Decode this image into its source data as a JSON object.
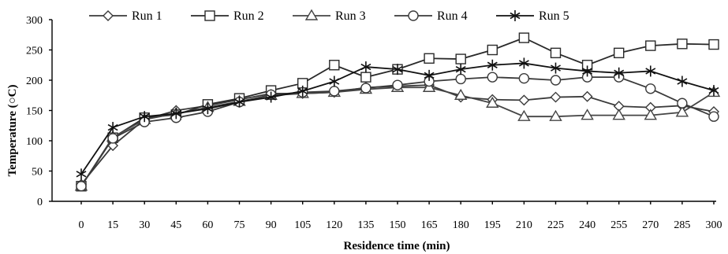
{
  "chart_data": {
    "type": "line",
    "title": "",
    "xlabel": "Residence time (min)",
    "ylabel": "Temperature  (○C)",
    "x": [
      0,
      15,
      30,
      45,
      60,
      75,
      90,
      105,
      120,
      135,
      150,
      165,
      180,
      195,
      210,
      225,
      240,
      255,
      270,
      285,
      300
    ],
    "ylim": [
      0,
      300
    ],
    "yticks": [
      0,
      50,
      100,
      150,
      200,
      250,
      300
    ],
    "grid": false,
    "legend_position": "top",
    "series": [
      {
        "name": "Run 1",
        "marker": "diamond",
        "color": "#3a3a3a",
        "values": [
          28,
          92,
          135,
          150,
          158,
          168,
          178,
          178,
          180,
          188,
          190,
          192,
          172,
          168,
          167,
          172,
          173,
          157,
          155,
          158,
          148
        ]
      },
      {
        "name": "Run 2",
        "marker": "square",
        "color": "#2a2a2a",
        "values": [
          25,
          105,
          138,
          143,
          160,
          170,
          183,
          195,
          225,
          205,
          218,
          236,
          235,
          250,
          270,
          245,
          225,
          245,
          257,
          260,
          259
        ]
      },
      {
        "name": "Run 3",
        "marker": "triangle",
        "color": "#444444",
        "values": [
          25,
          106,
          135,
          145,
          155,
          165,
          175,
          178,
          180,
          185,
          188,
          188,
          175,
          162,
          140,
          140,
          142,
          142,
          142,
          147,
          180
        ]
      },
      {
        "name": "Run 4",
        "marker": "circle",
        "color": "#3a3a3a",
        "values": [
          25,
          104,
          131,
          138,
          148,
          164,
          176,
          180,
          182,
          187,
          192,
          198,
          202,
          205,
          203,
          200,
          205,
          205,
          186,
          162,
          140
        ]
      },
      {
        "name": "Run 5",
        "marker": "star",
        "color": "#111111",
        "values": [
          45,
          122,
          140,
          145,
          153,
          164,
          172,
          182,
          198,
          222,
          218,
          208,
          218,
          225,
          228,
          220,
          215,
          212,
          215,
          198,
          183
        ]
      }
    ]
  }
}
